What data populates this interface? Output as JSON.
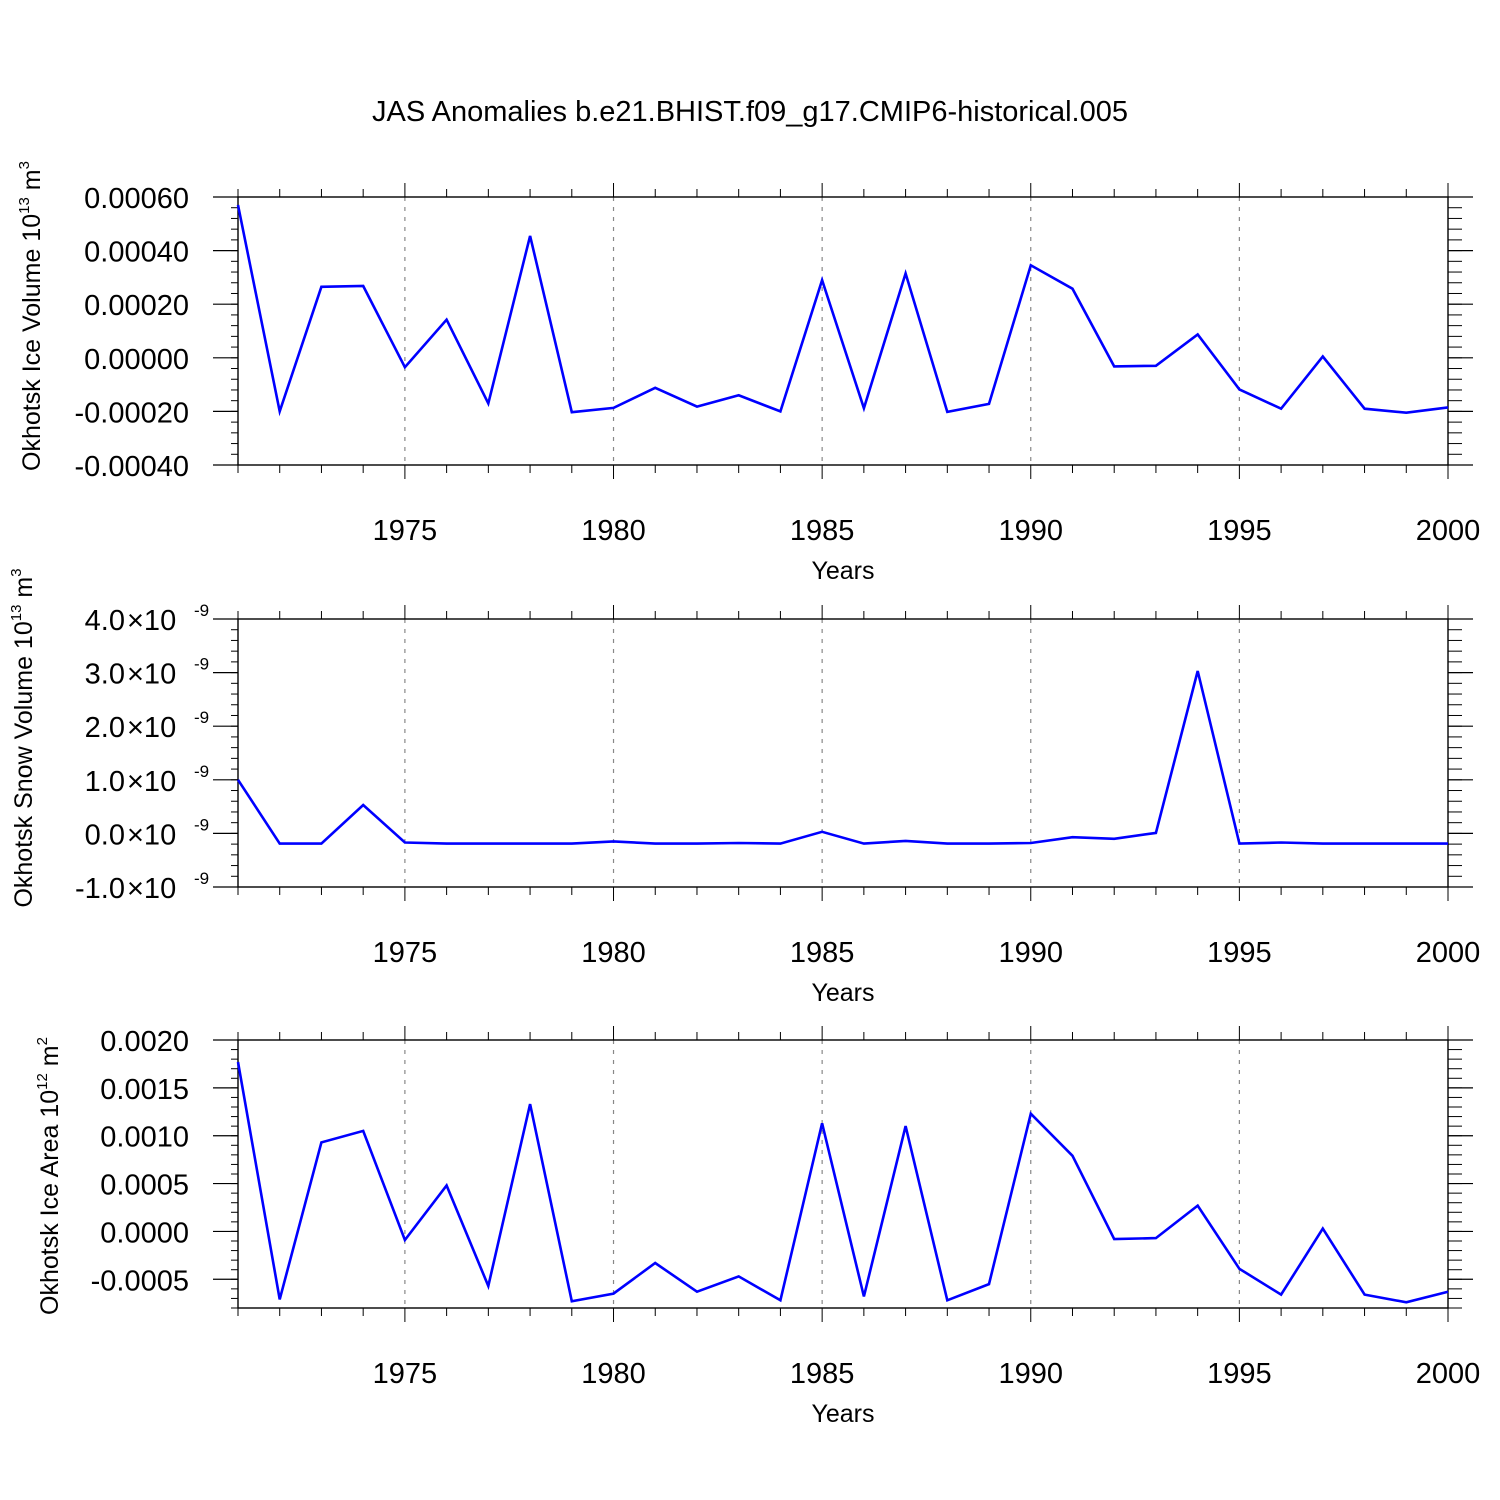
{
  "title": "JAS Anomalies b.e21.BHIST.f09_g17.CMIP6-historical.005",
  "line_color": "#0000ff",
  "chart_data": [
    {
      "type": "line",
      "title": "JAS Anomalies b.e21.BHIST.f09_g17.CMIP6-historical.005",
      "xlabel": "Years",
      "ylabel": "Okhotsk Ice Volume 10",
      "ylabel_sup": "13",
      "ylabel_unit": "m",
      "ylabel_unit_sup": "3",
      "xlim": [
        1971,
        2000
      ],
      "ylim": [
        -0.0004,
        0.0006
      ],
      "yticks": [
        -0.0004,
        -0.0002,
        0.0,
        0.0002,
        0.0004,
        0.0006
      ],
      "ytick_labels": [
        "-0.00040",
        "-0.00020",
        "0.00000",
        "0.00020",
        "0.00040",
        "0.00060"
      ],
      "xticks": [
        1975,
        1980,
        1985,
        1990,
        1995,
        2000
      ],
      "xtick_labels": [
        "1975",
        "1980",
        "1985",
        "1990",
        "1995",
        "2000"
      ],
      "grid_x": true,
      "x": [
        1971,
        1972,
        1973,
        1974,
        1975,
        1976,
        1977,
        1978,
        1979,
        1980,
        1981,
        1982,
        1983,
        1984,
        1985,
        1986,
        1987,
        1988,
        1989,
        1990,
        1991,
        1992,
        1993,
        1994,
        1995,
        1996,
        1997,
        1998,
        1999,
        2000
      ],
      "values": [
        0.00057,
        -0.0002,
        0.000265,
        0.000268,
        -3.5e-05,
        0.000142,
        -0.00017,
        0.000455,
        -0.000203,
        -0.000187,
        -0.000112,
        -0.000182,
        -0.00014,
        -0.0002,
        0.00029,
        -0.000188,
        0.000315,
        -0.000202,
        -0.000172,
        0.000345,
        0.000258,
        -3.2e-05,
        -3e-05,
        8.7e-05,
        -0.000118,
        -0.00019,
        5e-06,
        -0.00019,
        -0.000205,
        -0.000185
      ]
    },
    {
      "type": "line",
      "xlabel": "Years",
      "ylabel": "Okhotsk Snow Volume 10",
      "ylabel_sup": "13",
      "ylabel_unit": "m",
      "ylabel_unit_sup": "3",
      "xlim": [
        1971,
        2000
      ],
      "ylim": [
        -1e-09,
        4e-09
      ],
      "yticks": [
        -1e-09,
        0.0,
        1e-09,
        2e-09,
        3e-09,
        4e-09
      ],
      "ytick_labels": [
        "-1.0",
        "0.0",
        "1.0",
        "2.0",
        "3.0",
        "4.0"
      ],
      "ytick_exponent": "-9",
      "ytick_multiplier": "×10",
      "xticks": [
        1975,
        1980,
        1985,
        1990,
        1995,
        2000
      ],
      "xtick_labels": [
        "1975",
        "1980",
        "1985",
        "1990",
        "1995",
        "2000"
      ],
      "grid_x": true,
      "x": [
        1971,
        1972,
        1973,
        1974,
        1975,
        1976,
        1977,
        1978,
        1979,
        1980,
        1981,
        1982,
        1983,
        1984,
        1985,
        1986,
        1987,
        1988,
        1989,
        1990,
        1991,
        1992,
        1993,
        1994,
        1995,
        1996,
        1997,
        1998,
        1999,
        2000
      ],
      "values": [
        1e-09,
        -1.9e-10,
        -1.9e-10,
        5.3e-10,
        -1.7e-10,
        -1.9e-10,
        -1.9e-10,
        -1.9e-10,
        -1.9e-10,
        -1.5e-10,
        -1.9e-10,
        -1.9e-10,
        -1.8e-10,
        -1.9e-10,
        3e-11,
        -1.9e-10,
        -1.4e-10,
        -1.9e-10,
        -1.9e-10,
        -1.8e-10,
        -7e-11,
        -1e-10,
        1e-11,
        3.03e-09,
        -1.9e-10,
        -1.7e-10,
        -1.9e-10,
        -1.9e-10,
        -1.9e-10,
        -1.9e-10
      ]
    },
    {
      "type": "line",
      "xlabel": "Years",
      "ylabel": "Okhotsk Ice Area 10",
      "ylabel_sup": "12",
      "ylabel_unit": "m",
      "ylabel_unit_sup": "2",
      "xlim": [
        1971,
        2000
      ],
      "ylim": [
        -0.0008,
        0.002
      ],
      "yticks": [
        -0.0005,
        0.0,
        0.0005,
        0.001,
        0.0015,
        0.002
      ],
      "ytick_labels": [
        "-0.0005",
        "0.0000",
        "0.0005",
        "0.0010",
        "0.0015",
        "0.0020"
      ],
      "xticks": [
        1975,
        1980,
        1985,
        1990,
        1995,
        2000
      ],
      "xtick_labels": [
        "1975",
        "1980",
        "1985",
        "1990",
        "1995",
        "2000"
      ],
      "grid_x": true,
      "x": [
        1971,
        1972,
        1973,
        1974,
        1975,
        1976,
        1977,
        1978,
        1979,
        1980,
        1981,
        1982,
        1983,
        1984,
        1985,
        1986,
        1987,
        1988,
        1989,
        1990,
        1991,
        1992,
        1993,
        1994,
        1995,
        1996,
        1997,
        1998,
        1999,
        2000
      ],
      "values": [
        0.00177,
        -0.00071,
        0.00093,
        0.00105,
        -9e-05,
        0.00048,
        -0.00057,
        0.00133,
        -0.00073,
        -0.00065,
        -0.00033,
        -0.00063,
        -0.00047,
        -0.00072,
        0.00113,
        -0.00068,
        0.0011,
        -0.00072,
        -0.00055,
        0.00123,
        0.00079,
        -8e-05,
        -7e-05,
        0.00027,
        -0.00039,
        -0.00066,
        3e-05,
        -0.00066,
        -0.00074,
        -0.00063
      ]
    }
  ]
}
